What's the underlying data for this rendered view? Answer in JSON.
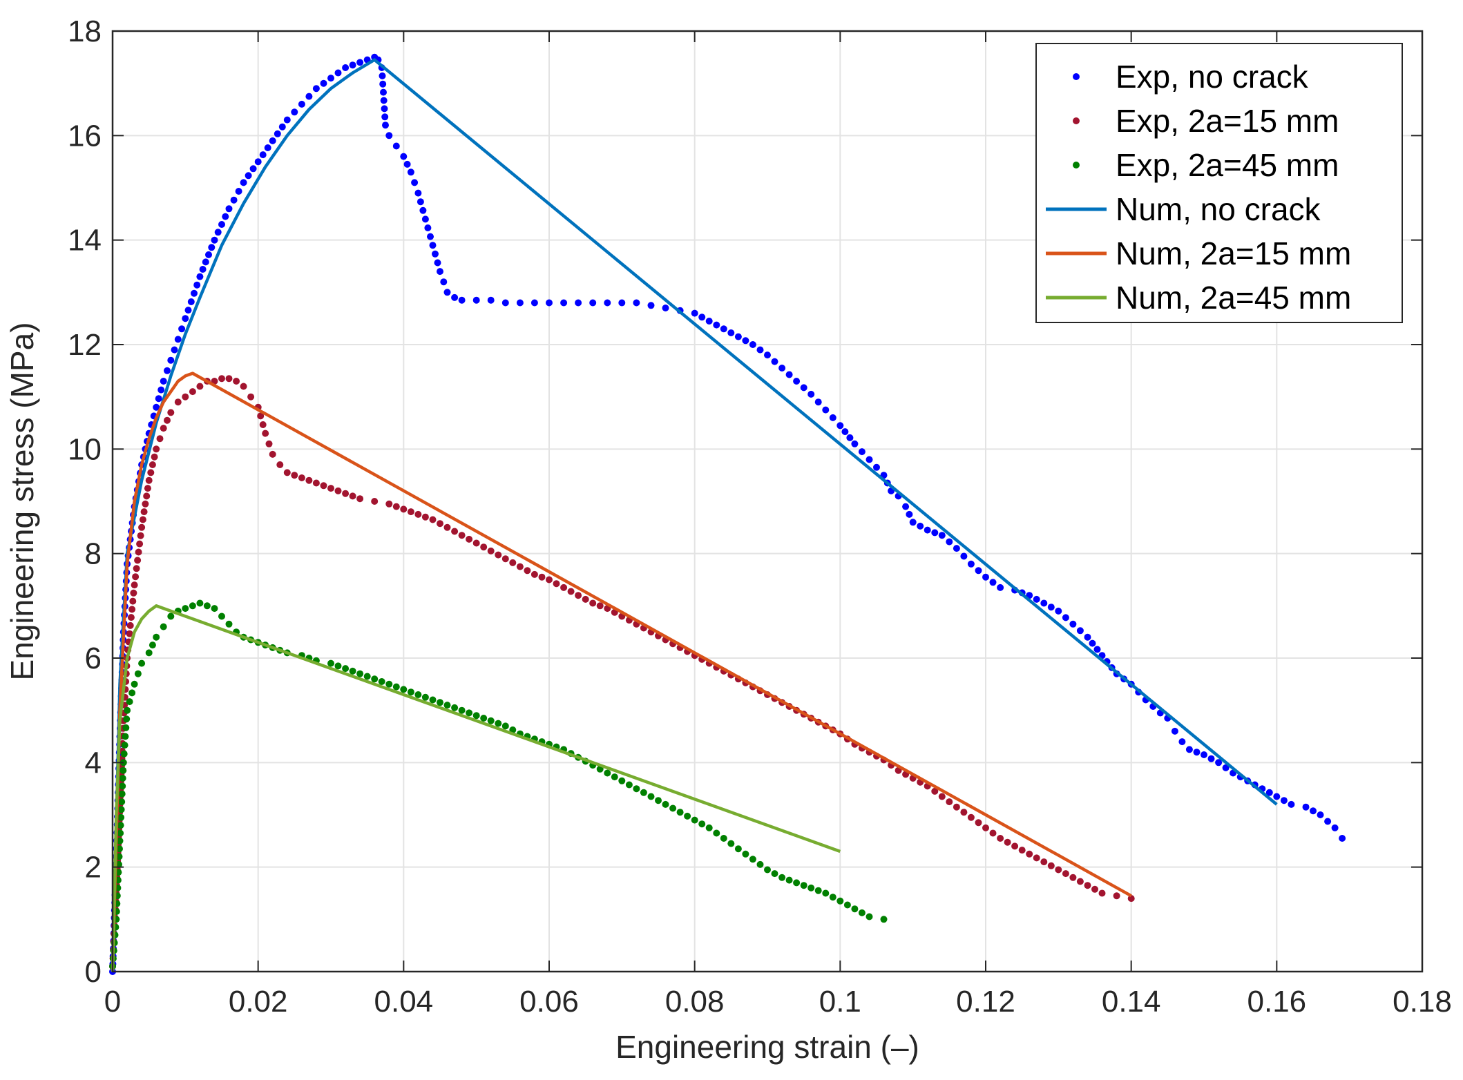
{
  "chart_data": {
    "type": "line",
    "title": "",
    "xlabel": "Engineering strain (–)",
    "ylabel": "Engineering stress (MPa)",
    "xlim": [
      0,
      0.18
    ],
    "ylim": [
      0,
      18
    ],
    "xticks": [
      0,
      0.02,
      0.04,
      0.06,
      0.08,
      0.1,
      0.12,
      0.14,
      0.16,
      0.18
    ],
    "xtick_labels": [
      "0",
      "0.02",
      "0.04",
      "0.06",
      "0.08",
      "0.1",
      "0.12",
      "0.14",
      "0.16",
      "0.18"
    ],
    "yticks": [
      0,
      2,
      4,
      6,
      8,
      10,
      12,
      14,
      16,
      18
    ],
    "ytick_labels": [
      "0",
      "2",
      "4",
      "6",
      "8",
      "10",
      "12",
      "14",
      "16",
      "18"
    ],
    "grid": true,
    "legend_position": "top-right",
    "series": [
      {
        "name": "Exp, no crack",
        "style": "dots",
        "color": "#0000ff",
        "x": [
          0,
          0.0005,
          0.001,
          0.0015,
          0.002,
          0.003,
          0.004,
          0.005,
          0.006,
          0.007,
          0.008,
          0.009,
          0.01,
          0.012,
          0.014,
          0.016,
          0.018,
          0.02,
          0.022,
          0.024,
          0.026,
          0.028,
          0.03,
          0.032,
          0.034,
          0.035,
          0.036,
          0.0365,
          0.037,
          0.0375,
          0.038,
          0.039,
          0.04,
          0.041,
          0.042,
          0.043,
          0.044,
          0.045,
          0.046,
          0.047,
          0.048,
          0.05,
          0.052,
          0.054,
          0.056,
          0.058,
          0.06,
          0.062,
          0.064,
          0.066,
          0.068,
          0.07,
          0.072,
          0.074,
          0.076,
          0.078,
          0.08,
          0.082,
          0.084,
          0.086,
          0.088,
          0.09,
          0.092,
          0.094,
          0.096,
          0.098,
          0.1,
          0.102,
          0.104,
          0.106,
          0.107,
          0.108,
          0.109,
          0.11,
          0.112,
          0.114,
          0.116,
          0.118,
          0.12,
          0.122,
          0.124,
          0.126,
          0.128,
          0.13,
          0.132,
          0.134,
          0.136,
          0.138,
          0.14,
          0.142,
          0.144,
          0.145,
          0.146,
          0.147,
          0.148,
          0.15,
          0.152,
          0.154,
          0.156,
          0.158,
          0.16,
          0.162,
          0.164,
          0.166,
          0.168,
          0.169
        ],
        "y": [
          0,
          2.2,
          4.5,
          6.5,
          7.8,
          8.9,
          9.7,
          10.3,
          10.8,
          11.3,
          11.7,
          12.1,
          12.5,
          13.3,
          14.0,
          14.6,
          15.1,
          15.5,
          15.9,
          16.3,
          16.6,
          16.9,
          17.1,
          17.3,
          17.4,
          17.45,
          17.5,
          17.45,
          17.3,
          16.2,
          16.0,
          15.8,
          15.6,
          15.3,
          14.9,
          14.4,
          13.9,
          13.4,
          13.0,
          12.9,
          12.85,
          12.85,
          12.85,
          12.8,
          12.8,
          12.8,
          12.8,
          12.8,
          12.8,
          12.8,
          12.8,
          12.8,
          12.8,
          12.75,
          12.7,
          12.65,
          12.6,
          12.45,
          12.3,
          12.15,
          12.0,
          11.8,
          11.55,
          11.3,
          11.05,
          10.75,
          10.45,
          10.1,
          9.8,
          9.5,
          9.2,
          9.1,
          8.9,
          8.6,
          8.45,
          8.35,
          8.1,
          7.8,
          7.55,
          7.35,
          7.3,
          7.2,
          7.05,
          6.9,
          6.65,
          6.4,
          6.05,
          5.7,
          5.5,
          5.2,
          4.95,
          4.85,
          4.6,
          4.4,
          4.25,
          4.15,
          4.0,
          3.8,
          3.65,
          3.5,
          3.35,
          3.2,
          3.15,
          3.0,
          2.75,
          2.55
        ]
      },
      {
        "name": "Exp, 2a=15 mm",
        "style": "dots",
        "color": "#a2142f",
        "x": [
          0,
          0.0005,
          0.001,
          0.0015,
          0.002,
          0.003,
          0.004,
          0.005,
          0.006,
          0.007,
          0.008,
          0.009,
          0.01,
          0.011,
          0.012,
          0.013,
          0.014,
          0.015,
          0.016,
          0.017,
          0.018,
          0.019,
          0.02,
          0.021,
          0.022,
          0.023,
          0.024,
          0.026,
          0.028,
          0.03,
          0.032,
          0.034,
          0.036,
          0.038,
          0.04,
          0.042,
          0.044,
          0.046,
          0.048,
          0.05,
          0.052,
          0.054,
          0.056,
          0.058,
          0.06,
          0.062,
          0.064,
          0.066,
          0.068,
          0.07,
          0.072,
          0.074,
          0.076,
          0.078,
          0.08,
          0.082,
          0.084,
          0.086,
          0.088,
          0.09,
          0.092,
          0.094,
          0.096,
          0.098,
          0.1,
          0.102,
          0.104,
          0.106,
          0.108,
          0.11,
          0.112,
          0.114,
          0.116,
          0.118,
          0.12,
          0.122,
          0.124,
          0.126,
          0.128,
          0.13,
          0.132,
          0.134,
          0.136,
          0.138,
          0.14
        ],
        "y": [
          0.1,
          1.5,
          3.2,
          4.8,
          6.0,
          7.4,
          8.5,
          9.4,
          10.0,
          10.4,
          10.7,
          10.9,
          11.0,
          11.1,
          11.2,
          11.3,
          11.3,
          11.35,
          11.35,
          11.3,
          11.2,
          11.0,
          10.8,
          10.3,
          9.9,
          9.7,
          9.55,
          9.45,
          9.35,
          9.25,
          9.15,
          9.05,
          9.0,
          8.95,
          8.85,
          8.75,
          8.65,
          8.5,
          8.35,
          8.2,
          8.05,
          7.9,
          7.75,
          7.6,
          7.5,
          7.35,
          7.2,
          7.05,
          6.95,
          6.8,
          6.65,
          6.5,
          6.35,
          6.2,
          6.05,
          5.9,
          5.75,
          5.6,
          5.45,
          5.3,
          5.15,
          5.0,
          4.85,
          4.7,
          4.55,
          4.35,
          4.2,
          4.05,
          3.85,
          3.7,
          3.55,
          3.35,
          3.15,
          2.95,
          2.75,
          2.55,
          2.4,
          2.25,
          2.1,
          1.95,
          1.8,
          1.65,
          1.5,
          1.45,
          1.4
        ]
      },
      {
        "name": "Exp, 2a=45 mm",
        "style": "dots",
        "color": "#008000",
        "x": [
          0,
          0.0005,
          0.001,
          0.0015,
          0.002,
          0.003,
          0.004,
          0.005,
          0.006,
          0.007,
          0.008,
          0.009,
          0.01,
          0.011,
          0.012,
          0.013,
          0.014,
          0.015,
          0.016,
          0.017,
          0.018,
          0.019,
          0.02,
          0.022,
          0.024,
          0.026,
          0.028,
          0.03,
          0.032,
          0.034,
          0.036,
          0.038,
          0.04,
          0.042,
          0.044,
          0.046,
          0.048,
          0.05,
          0.052,
          0.054,
          0.056,
          0.058,
          0.06,
          0.062,
          0.064,
          0.066,
          0.068,
          0.07,
          0.072,
          0.074,
          0.076,
          0.078,
          0.08,
          0.082,
          0.084,
          0.086,
          0.088,
          0.09,
          0.092,
          0.094,
          0.096,
          0.098,
          0.1,
          0.102,
          0.104,
          0.106
        ],
        "y": [
          0.1,
          1.0,
          2.5,
          4.0,
          5.0,
          5.5,
          5.9,
          6.1,
          6.4,
          6.6,
          6.8,
          6.9,
          6.95,
          7.0,
          7.05,
          7.0,
          6.95,
          6.8,
          6.65,
          6.5,
          6.4,
          6.35,
          6.3,
          6.2,
          6.1,
          6.05,
          5.95,
          5.9,
          5.8,
          5.7,
          5.6,
          5.5,
          5.4,
          5.3,
          5.2,
          5.1,
          5.0,
          4.9,
          4.8,
          4.7,
          4.55,
          4.45,
          4.35,
          4.25,
          4.1,
          3.95,
          3.8,
          3.65,
          3.5,
          3.35,
          3.2,
          3.05,
          2.9,
          2.75,
          2.55,
          2.35,
          2.15,
          1.95,
          1.8,
          1.7,
          1.6,
          1.5,
          1.35,
          1.2,
          1.05,
          1.0
        ]
      },
      {
        "name": "Num, no crack",
        "style": "line",
        "color": "#0072bd",
        "x": [
          0,
          0.001,
          0.002,
          0.004,
          0.006,
          0.008,
          0.01,
          0.012,
          0.015,
          0.018,
          0.021,
          0.024,
          0.027,
          0.03,
          0.033,
          0.036,
          0.16
        ],
        "y": [
          0,
          5.5,
          8.0,
          9.4,
          10.5,
          11.4,
          12.2,
          12.9,
          13.9,
          14.7,
          15.4,
          16.0,
          16.5,
          16.9,
          17.2,
          17.45,
          3.2
        ]
      },
      {
        "name": "Num, 2a=15 mm",
        "style": "line",
        "color": "#d95319",
        "x": [
          0,
          0.001,
          0.002,
          0.003,
          0.004,
          0.005,
          0.006,
          0.007,
          0.008,
          0.009,
          0.01,
          0.011,
          0.14
        ],
        "y": [
          0,
          5.0,
          7.8,
          9.0,
          9.7,
          10.2,
          10.6,
          10.9,
          11.1,
          11.3,
          11.4,
          11.45,
          1.45
        ]
      },
      {
        "name": "Num, 2a=45 mm",
        "style": "line",
        "color": "#77ac30",
        "x": [
          0,
          0.0005,
          0.001,
          0.002,
          0.003,
          0.004,
          0.005,
          0.006,
          0.1
        ],
        "y": [
          0,
          3.0,
          4.8,
          6.0,
          6.5,
          6.75,
          6.9,
          7.0,
          2.3
        ]
      }
    ]
  }
}
